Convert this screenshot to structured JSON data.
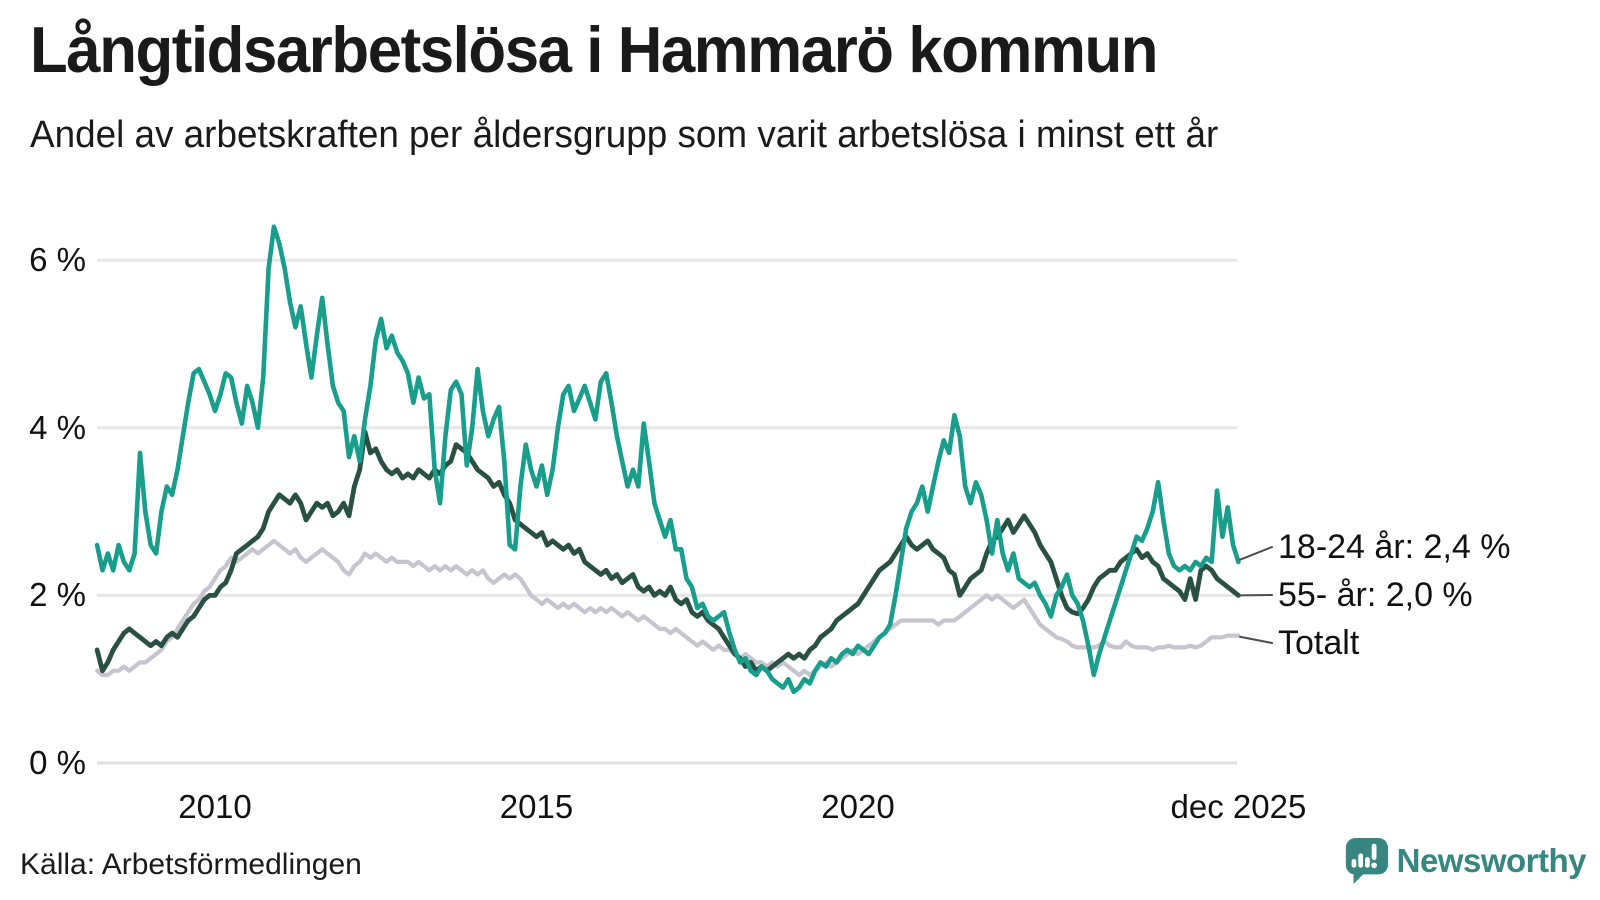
{
  "header": {
    "title": "Långtidsarbetslösa i Hammarö kommun",
    "subtitle": "Andel av arbetskraften per åldersgrupp som varit arbetslösa i minst ett år"
  },
  "footer": {
    "source": "Källa: Arbetsförmedlingen",
    "brand": "Newsworthy"
  },
  "colors": {
    "series_18_24": "#189e8b",
    "series_55": "#2a4f43",
    "series_total": "#c6c4ce",
    "grid": "#e6e6e8",
    "grid_zero": "#e0e0e2",
    "connector": "#4d4d4d",
    "brand_teal": "#37867f",
    "text": "#1a1a1a"
  },
  "chart_data": {
    "type": "line",
    "title": "Långtidsarbetslösa i Hammarö kommun",
    "subtitle": "Andel av arbetskraften per åldersgrupp som varit arbetslösa i minst ett år",
    "unit": "%",
    "grid": "horizontal",
    "legend_position": "right-end-labels",
    "x_start": "2008-03",
    "x_end": "2025-12",
    "points_per_year": 12,
    "ylim": [
      0,
      6.8
    ],
    "y_ticks": [
      0,
      2,
      4,
      6
    ],
    "y_tick_labels": [
      "0 %",
      "2 %",
      "4 %",
      "6 %"
    ],
    "x_ticks": [
      {
        "label": "2010",
        "year": 2010.0
      },
      {
        "label": "2015",
        "year": 2015.0
      },
      {
        "label": "2020",
        "year": 2020.0
      },
      {
        "label": "dec 2025",
        "year": 2025.917
      }
    ],
    "series": [
      {
        "name": "18-24 år",
        "end_label": "18-24 år: 2,4 %",
        "end_value": 2.4,
        "color": "#189e8b",
        "values": [
          2.6,
          2.3,
          2.5,
          2.3,
          2.6,
          2.4,
          2.3,
          2.5,
          3.7,
          3.0,
          2.6,
          2.5,
          3.0,
          3.3,
          3.2,
          3.5,
          3.9,
          4.3,
          4.65,
          4.7,
          4.55,
          4.4,
          4.2,
          4.4,
          4.65,
          4.6,
          4.3,
          4.05,
          4.5,
          4.3,
          4.0,
          4.6,
          5.9,
          6.4,
          6.2,
          5.9,
          5.5,
          5.2,
          5.45,
          5.0,
          4.6,
          5.1,
          5.55,
          5.0,
          4.5,
          4.3,
          4.2,
          3.65,
          3.9,
          3.6,
          4.1,
          4.5,
          5.05,
          5.3,
          4.95,
          5.1,
          4.9,
          4.8,
          4.65,
          4.3,
          4.6,
          4.35,
          4.4,
          3.5,
          3.1,
          3.9,
          4.45,
          4.55,
          4.4,
          3.55,
          4.0,
          4.7,
          4.2,
          3.9,
          4.1,
          4.25,
          3.6,
          2.6,
          2.55,
          3.3,
          3.8,
          3.5,
          3.3,
          3.55,
          3.2,
          3.5,
          4.0,
          4.4,
          4.5,
          4.2,
          4.35,
          4.5,
          4.3,
          4.1,
          4.55,
          4.65,
          4.3,
          3.9,
          3.6,
          3.3,
          3.5,
          3.3,
          4.05,
          3.6,
          3.1,
          2.9,
          2.7,
          2.9,
          2.55,
          2.55,
          2.2,
          2.1,
          1.85,
          1.9,
          1.75,
          1.7,
          1.75,
          1.8,
          1.55,
          1.35,
          1.2,
          1.25,
          1.1,
          1.05,
          1.15,
          1.1,
          1.0,
          0.95,
          0.9,
          1.0,
          0.85,
          0.9,
          1.0,
          0.95,
          1.1,
          1.2,
          1.15,
          1.25,
          1.2,
          1.3,
          1.35,
          1.3,
          1.4,
          1.35,
          1.3,
          1.4,
          1.5,
          1.55,
          1.65,
          2.0,
          2.4,
          2.8,
          3.0,
          3.1,
          3.3,
          3.0,
          3.3,
          3.6,
          3.85,
          3.7,
          4.15,
          3.9,
          3.3,
          3.1,
          3.35,
          3.2,
          2.9,
          2.5,
          2.9,
          2.5,
          2.3,
          2.5,
          2.2,
          2.15,
          2.1,
          2.15,
          2.0,
          1.9,
          1.75,
          2.0,
          2.1,
          2.25,
          2.0,
          1.9,
          1.7,
          1.4,
          1.05,
          1.3,
          1.5,
          1.7,
          1.9,
          2.1,
          2.3,
          2.5,
          2.7,
          2.65,
          2.8,
          3.0,
          3.35,
          2.9,
          2.5,
          2.35,
          2.3,
          2.35,
          2.3,
          2.4,
          2.35,
          2.45,
          2.4,
          3.25,
          2.7,
          3.05,
          2.6,
          2.4
        ]
      },
      {
        "name": "55- år",
        "end_label": "55- år: 2,0 %",
        "end_value": 2.0,
        "color": "#2a4f43",
        "values": [
          1.35,
          1.1,
          1.2,
          1.35,
          1.45,
          1.55,
          1.6,
          1.55,
          1.5,
          1.45,
          1.4,
          1.45,
          1.4,
          1.5,
          1.55,
          1.5,
          1.6,
          1.7,
          1.75,
          1.85,
          1.95,
          2.0,
          2.0,
          2.1,
          2.15,
          2.3,
          2.5,
          2.55,
          2.6,
          2.65,
          2.7,
          2.8,
          3.0,
          3.1,
          3.2,
          3.15,
          3.1,
          3.2,
          3.1,
          2.9,
          3.0,
          3.1,
          3.05,
          3.1,
          2.95,
          3.0,
          3.1,
          2.95,
          3.3,
          3.5,
          3.95,
          3.7,
          3.75,
          3.6,
          3.5,
          3.45,
          3.5,
          3.4,
          3.45,
          3.4,
          3.5,
          3.45,
          3.4,
          3.5,
          3.45,
          3.55,
          3.6,
          3.8,
          3.75,
          3.7,
          3.6,
          3.5,
          3.45,
          3.4,
          3.3,
          3.35,
          3.2,
          3.1,
          2.9,
          2.85,
          2.8,
          2.75,
          2.7,
          2.75,
          2.6,
          2.65,
          2.6,
          2.55,
          2.6,
          2.5,
          2.55,
          2.4,
          2.35,
          2.3,
          2.25,
          2.3,
          2.2,
          2.25,
          2.15,
          2.2,
          2.25,
          2.1,
          2.05,
          2.1,
          2.0,
          2.05,
          2.0,
          2.1,
          1.95,
          1.9,
          1.95,
          1.8,
          1.75,
          1.8,
          1.7,
          1.65,
          1.6,
          1.5,
          1.4,
          1.3,
          1.25,
          1.15,
          1.2,
          1.1,
          1.15,
          1.1,
          1.15,
          1.2,
          1.25,
          1.3,
          1.25,
          1.3,
          1.25,
          1.35,
          1.4,
          1.5,
          1.55,
          1.6,
          1.7,
          1.75,
          1.8,
          1.85,
          1.9,
          2.0,
          2.1,
          2.2,
          2.3,
          2.35,
          2.4,
          2.5,
          2.6,
          2.7,
          2.6,
          2.55,
          2.6,
          2.65,
          2.55,
          2.5,
          2.45,
          2.3,
          2.25,
          2.0,
          2.1,
          2.2,
          2.25,
          2.3,
          2.5,
          2.65,
          2.7,
          2.8,
          2.9,
          2.75,
          2.85,
          2.95,
          2.85,
          2.75,
          2.6,
          2.5,
          2.4,
          2.2,
          2.0,
          1.85,
          1.8,
          1.78,
          1.85,
          1.95,
          2.1,
          2.2,
          2.25,
          2.3,
          2.3,
          2.4,
          2.45,
          2.5,
          2.55,
          2.45,
          2.5,
          2.4,
          2.35,
          2.2,
          2.15,
          2.1,
          2.05,
          1.95,
          2.2,
          1.95,
          2.3,
          2.35,
          2.3,
          2.2,
          2.15,
          2.1,
          2.05,
          2.0
        ]
      },
      {
        "name": "Totalt",
        "end_label": "Totalt",
        "end_value": 1.52,
        "color": "#c6c4ce",
        "values": [
          1.1,
          1.05,
          1.05,
          1.1,
          1.1,
          1.15,
          1.1,
          1.15,
          1.2,
          1.2,
          1.25,
          1.3,
          1.35,
          1.45,
          1.5,
          1.6,
          1.7,
          1.8,
          1.9,
          1.95,
          2.05,
          2.1,
          2.2,
          2.3,
          2.35,
          2.45,
          2.4,
          2.45,
          2.5,
          2.55,
          2.5,
          2.55,
          2.6,
          2.65,
          2.6,
          2.55,
          2.5,
          2.55,
          2.45,
          2.4,
          2.45,
          2.5,
          2.55,
          2.5,
          2.45,
          2.4,
          2.3,
          2.25,
          2.35,
          2.4,
          2.5,
          2.45,
          2.5,
          2.45,
          2.4,
          2.45,
          2.4,
          2.4,
          2.4,
          2.35,
          2.4,
          2.35,
          2.3,
          2.35,
          2.3,
          2.35,
          2.3,
          2.35,
          2.3,
          2.25,
          2.3,
          2.25,
          2.3,
          2.2,
          2.15,
          2.2,
          2.25,
          2.2,
          2.25,
          2.2,
          2.1,
          2.0,
          1.95,
          1.9,
          1.95,
          1.9,
          1.85,
          1.9,
          1.85,
          1.9,
          1.85,
          1.8,
          1.85,
          1.8,
          1.85,
          1.8,
          1.85,
          1.8,
          1.75,
          1.8,
          1.75,
          1.7,
          1.75,
          1.7,
          1.65,
          1.6,
          1.6,
          1.55,
          1.6,
          1.55,
          1.5,
          1.45,
          1.4,
          1.45,
          1.4,
          1.35,
          1.4,
          1.35,
          1.35,
          1.3,
          1.25,
          1.3,
          1.25,
          1.2,
          1.2,
          1.15,
          1.2,
          1.15,
          1.2,
          1.15,
          1.1,
          1.05,
          1.1,
          1.05,
          1.1,
          1.15,
          1.2,
          1.15,
          1.2,
          1.25,
          1.3,
          1.35,
          1.3,
          1.35,
          1.4,
          1.45,
          1.5,
          1.55,
          1.6,
          1.65,
          1.7,
          1.7,
          1.7,
          1.7,
          1.7,
          1.7,
          1.7,
          1.65,
          1.7,
          1.7,
          1.7,
          1.75,
          1.8,
          1.85,
          1.9,
          1.95,
          2.0,
          1.95,
          2.0,
          1.95,
          1.9,
          1.85,
          1.9,
          1.95,
          1.85,
          1.75,
          1.65,
          1.6,
          1.55,
          1.5,
          1.48,
          1.45,
          1.4,
          1.38,
          1.38,
          1.38,
          1.38,
          1.4,
          1.45,
          1.4,
          1.38,
          1.38,
          1.45,
          1.4,
          1.38,
          1.38,
          1.38,
          1.35,
          1.38,
          1.38,
          1.4,
          1.38,
          1.38,
          1.38,
          1.4,
          1.38,
          1.4,
          1.45,
          1.5,
          1.5,
          1.5,
          1.52,
          1.52,
          1.52
        ]
      }
    ]
  }
}
